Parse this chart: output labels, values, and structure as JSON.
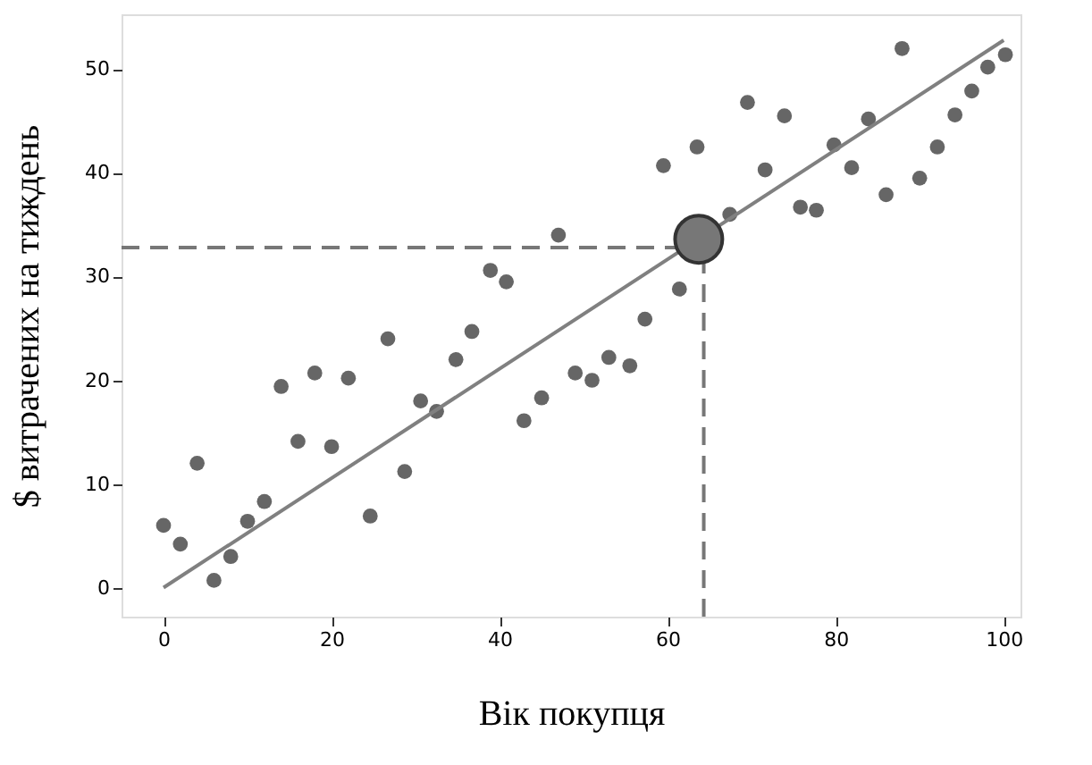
{
  "chart_data": {
    "type": "scatter",
    "xlabel": "Вік покупця",
    "ylabel": "$ витрачених на тиждень",
    "xlim": [
      -5,
      102
    ],
    "ylim": [
      -2.8,
      55.3
    ],
    "xticks": [
      0,
      20,
      40,
      60,
      80,
      100
    ],
    "yticks": [
      0,
      10,
      20,
      30,
      40,
      50
    ],
    "grid": false,
    "marker": "circle",
    "series": [
      {
        "color": "#666666",
        "x": [
          0,
          2,
          4,
          6,
          8,
          10,
          12,
          14,
          16,
          18,
          20,
          22,
          24.6,
          26.7,
          28.7,
          30.6,
          32.5,
          34.8,
          36.7,
          38.9,
          40.8,
          42.9,
          45,
          47,
          49,
          51,
          53,
          55.5,
          57.3,
          59.5,
          61.4,
          63.5,
          67.4,
          69.5,
          71.6,
          73.9,
          75.8,
          77.7,
          79.8,
          81.9,
          83.9,
          86,
          87.9,
          90,
          92.1,
          94.2,
          96.2,
          98.1,
          100.2
        ],
        "values": [
          6,
          4.2,
          12,
          0.7,
          3,
          6.4,
          8.3,
          19.4,
          14.1,
          20.7,
          13.6,
          20.2,
          6.9,
          24,
          11.2,
          18,
          17,
          22,
          24.7,
          30.6,
          29.5,
          16.1,
          18.3,
          34,
          20.7,
          20,
          22.2,
          21.4,
          25.9,
          40.7,
          28.8,
          42.5,
          36,
          46.8,
          40.3,
          45.5,
          36.7,
          36.4,
          42.7,
          40.5,
          45.2,
          37.9,
          52,
          39.5,
          42.5,
          45.6,
          47.9,
          50.2,
          51.4
        ]
      },
      {
        "type": "line",
        "color": "#808080",
        "line_style": "solid",
        "marker": "none",
        "x": [
          0,
          100
        ],
        "values": [
          0,
          52.8
        ]
      },
      {
        "type": "bubble",
        "color": "#777777",
        "x": [
          63.7
        ],
        "values": [
          33.6
        ],
        "sizes": [
          1
        ]
      }
    ],
    "ref_lines": [
      {
        "axis": "y",
        "value": 32.8,
        "color": "#777777",
        "line_style": "dashed"
      },
      {
        "axis": "x",
        "value": 64.3,
        "color": "#777777",
        "line_style": "dashed"
      }
    ]
  }
}
